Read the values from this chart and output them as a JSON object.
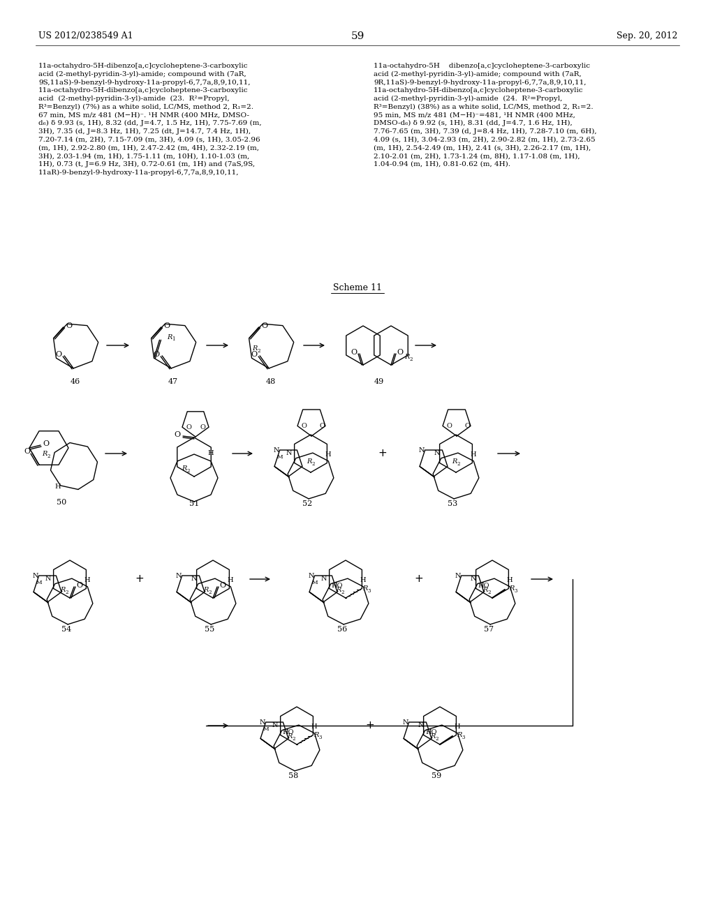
{
  "page_header_left": "US 2012/0238549 A1",
  "page_header_right": "Sep. 20, 2012",
  "page_number": "59",
  "scheme_title": "Scheme 11",
  "background_color": "#ffffff",
  "text_color": "#000000",
  "font_size_header": 9,
  "font_size_page_num": 11,
  "font_size_scheme": 9,
  "font_size_label": 8,
  "font_size_body": 7.5,
  "body_text_left": "11a-octahydro-5H-dibenzo[a,c]cycloheptene-3-carboxylic\nacid (2-methyl-pyridin-3-yl)-amide; compound with (7aR,\n9S,11aS)-9-benzyl-9-hydroxy-11a-propyl-6,7,7a,8,9,10,11,\n11a-octahydro-5H-dibenzo[a,c]cycloheptene-3-carboxylic\nacid  (2-methyl-pyridin-3-yl)-amide  (23.  R²=Propyl,\nR³=Benzyl) (7%) as a white solid, LC/MS, method 2, R₁=2.\n67 min, MS m/z 481 (M−H)⁻. ¹H NMR (400 MHz, DMSO-\nd₆) δ 9.93 (s, 1H), 8.32 (dd, J=4.7, 1.5 Hz, 1H), 7.75-7.69 (m,\n3H), 7.35 (d, J=8.3 Hz, 1H), 7.25 (dt, J=14.7, 7.4 Hz, 1H),\n7.20-7.14 (m, 2H), 7.15-7.09 (m, 3H), 4.09 (s, 1H), 3.05-2.96\n(m, 1H), 2.92-2.80 (m, 1H), 2.47-2.42 (m, 4H), 2.32-2.19 (m,\n3H), 2.03-1.94 (m, 1H), 1.75-1.11 (m, 10H), 1.10-1.03 (m,\n1H), 0.73 (t, J=6.9 Hz, 3H), 0.72-0.61 (m, 1H) and (7aS,9S,\n11aR)-9-benzyl-9-hydroxy-11a-propyl-6,7,7a,8,9,10,11,",
  "body_text_right": "11a-octahydro-5H    dibenzo[a,c]cycloheptene-3-carboxylic\nacid (2-methyl-pyridin-3-yl)-amide; compound with (7aR,\n9R,11aS)-9-benzyl-9-hydroxy-11a-propyl-6,7,7a,8,9,10,11,\n11a-octahydro-5H-dibenzo[a,c]cycloheptene-3-carboxylic\nacid (2-methyl-pyridin-3-yl)-amide  (24.  R²=Propyl,\nR³=Benzyl) (38%) as a white solid, LC/MS, method 2, R₁=2.\n95 min, MS m/z 481 (M−H)⁻=481, ¹H NMR (400 MHz,\nDMSO-d₆) δ 9.92 (s, 1H), 8.31 (dd, J=4.7, 1.6 Hz, 1H),\n7.76-7.65 (m, 3H), 7.39 (d, J=8.4 Hz, 1H), 7.28-7.10 (m, 6H),\n4.09 (s, 1H), 3.04-2.93 (m, 2H), 2.90-2.82 (m, 1H), 2.73-2.65\n(m, 1H), 2.54-2.49 (m, 1H), 2.41 (s, 3H), 2.26-2.17 (m, 1H),\n2.10-2.01 (m, 2H), 1.73-1.24 (m, 8H), 1.17-1.08 (m, 1H),\n1.04-0.94 (m, 1H), 0.81-0.62 (m, 4H)."
}
